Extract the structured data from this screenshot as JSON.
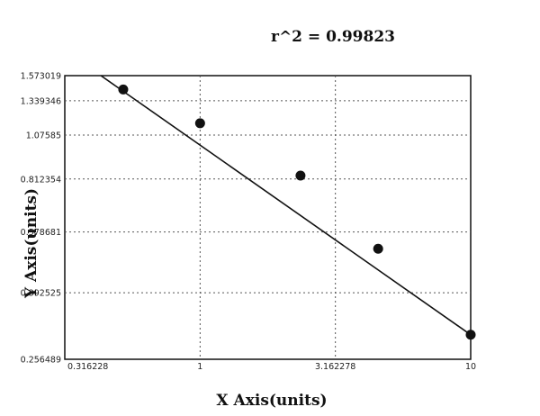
{
  "chart_data": {
    "type": "scatter",
    "annotation": "r^2  =  0.99823",
    "xlabel": "X Axis(units)",
    "ylabel": "Y Axis(units)",
    "x_scale": "log",
    "y_scale": "log",
    "xlim": [
      0.316228,
      10
    ],
    "ylim": [
      0.256489,
      1.573019
    ],
    "x_ticks": [
      "0.316228",
      "1",
      "3.162278",
      "10"
    ],
    "y_ticks": [
      "0.256489",
      "0.392525",
      "0.578681",
      "0.812354",
      "1.07585",
      "1.339346",
      "1.573019"
    ],
    "grid": true,
    "points": [
      {
        "x": 0.52,
        "y": 1.44
      },
      {
        "x": 1.0,
        "y": 1.16
      },
      {
        "x": 2.35,
        "y": 0.83
      },
      {
        "x": 4.55,
        "y": 0.52
      },
      {
        "x": 10.0,
        "y": 0.3
      }
    ],
    "fit_line": [
      {
        "x": 0.43,
        "y": 1.573
      },
      {
        "x": 10.0,
        "y": 0.3
      }
    ],
    "colors": {
      "points": "#111111",
      "line": "#111111",
      "grid": "#555555",
      "frame": "#111111"
    }
  }
}
